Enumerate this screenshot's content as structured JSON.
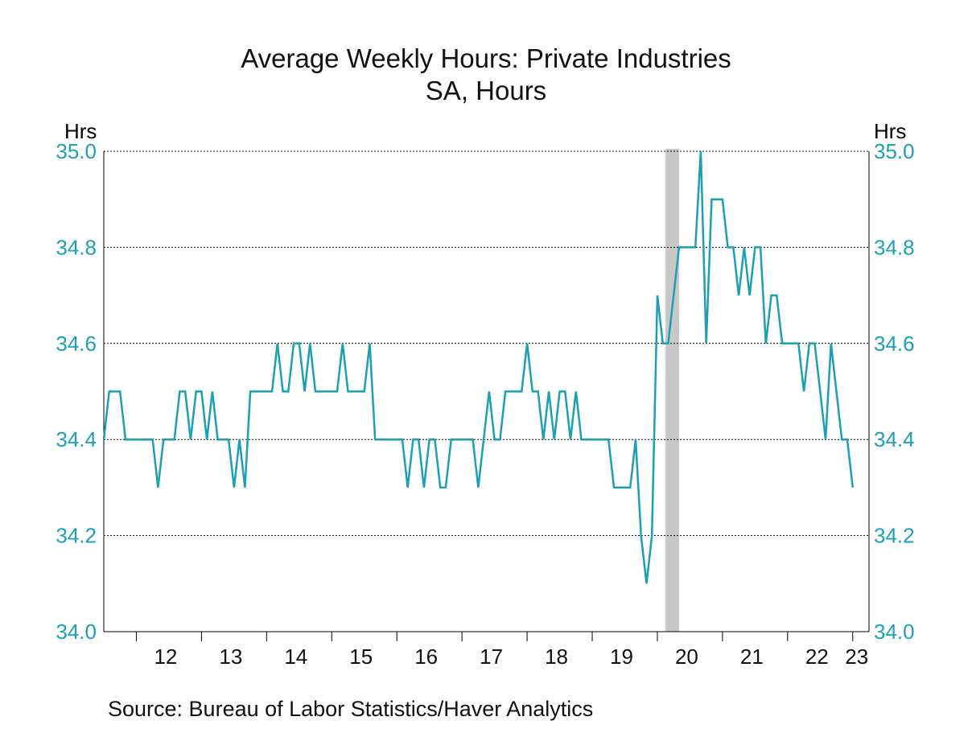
{
  "title": "Average Weekly Hours: Private Industries",
  "subtitle": "SA, Hours",
  "units": {
    "left": "Hrs",
    "right": "Hrs"
  },
  "source": "Source:  Bureau of Labor Statistics/Haver Analytics",
  "colors": {
    "series": "#1a9fb4",
    "axis_text": "#1aa0b8",
    "recession": "#c8c8c8",
    "grid": "#000000"
  },
  "chart_data": {
    "type": "line",
    "title": "Average Weekly Hours: Private Industries",
    "subtitle": "SA, Hours",
    "ylabel": "Hrs",
    "ylim": [
      34.0,
      35.0
    ],
    "yticks": [
      "34.0",
      "34.2",
      "34.4",
      "34.6",
      "34.8",
      "35.0"
    ],
    "x_range": [
      2011.5,
      2023.25
    ],
    "x_tick_labels": [
      "12",
      "13",
      "14",
      "15",
      "16",
      "17",
      "18",
      "19",
      "20",
      "21",
      "22",
      "23"
    ],
    "recession": {
      "start": 2020.125,
      "end": 2020.333
    },
    "series": [
      {
        "name": "Average Weekly Hours: Private Industries",
        "start": 2011.5,
        "step": 0.083333,
        "values": [
          34.4,
          34.5,
          34.5,
          34.5,
          34.4,
          34.4,
          34.4,
          34.4,
          34.4,
          34.4,
          34.3,
          34.4,
          34.4,
          34.4,
          34.5,
          34.5,
          34.4,
          34.5,
          34.5,
          34.4,
          34.5,
          34.4,
          34.4,
          34.4,
          34.3,
          34.4,
          34.3,
          34.5,
          34.5,
          34.5,
          34.5,
          34.5,
          34.6,
          34.5,
          34.5,
          34.6,
          34.6,
          34.5,
          34.6,
          34.5,
          34.5,
          34.5,
          34.5,
          34.5,
          34.6,
          34.5,
          34.5,
          34.5,
          34.5,
          34.6,
          34.4,
          34.4,
          34.4,
          34.4,
          34.4,
          34.4,
          34.3,
          34.4,
          34.4,
          34.3,
          34.4,
          34.4,
          34.3,
          34.3,
          34.4,
          34.4,
          34.4,
          34.4,
          34.4,
          34.3,
          34.4,
          34.5,
          34.4,
          34.4,
          34.5,
          34.5,
          34.5,
          34.5,
          34.6,
          34.5,
          34.5,
          34.4,
          34.5,
          34.4,
          34.5,
          34.5,
          34.4,
          34.5,
          34.4,
          34.4,
          34.4,
          34.4,
          34.4,
          34.4,
          34.3,
          34.3,
          34.3,
          34.3,
          34.4,
          34.2,
          34.1,
          34.2,
          34.7,
          34.6,
          34.6,
          34.7,
          34.8,
          34.8,
          34.8,
          34.8,
          35.0,
          34.6,
          34.9,
          34.9,
          34.9,
          34.8,
          34.8,
          34.7,
          34.8,
          34.7,
          34.8,
          34.8,
          34.6,
          34.7,
          34.7,
          34.6,
          34.6,
          34.6,
          34.6,
          34.5,
          34.6,
          34.6,
          34.5,
          34.4,
          34.6,
          34.5,
          34.4,
          34.4,
          34.3
        ]
      }
    ]
  }
}
